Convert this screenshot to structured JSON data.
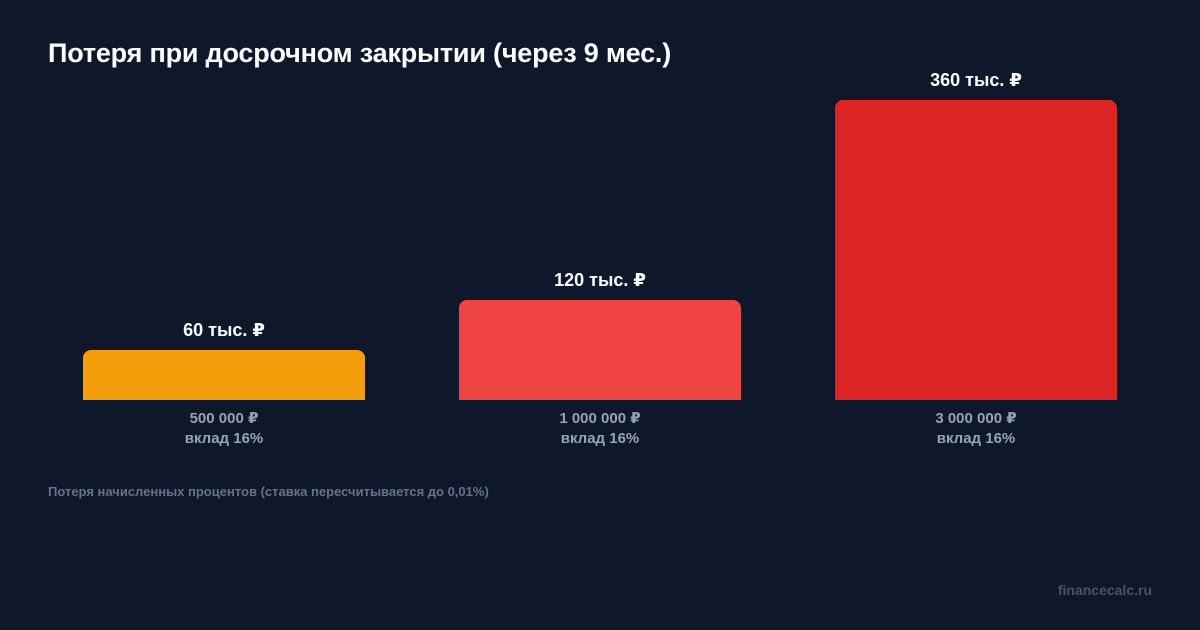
{
  "title": "Потеря при досрочном закрытии (через 9 мес.)",
  "note": "Потеря начисленных процентов (ставка пересчитывается до 0,01%)",
  "watermark": "financecalc.ru",
  "bars": [
    {
      "value_label": "60 тыс. ₽",
      "amount": "500 000 ₽",
      "rate": "вклад 16%",
      "color": "#f59e0b"
    },
    {
      "value_label": "120 тыс. ₽",
      "amount": "1 000 000 ₽",
      "rate": "вклад 16%",
      "color": "#ef4444"
    },
    {
      "value_label": "360 тыс. ₽",
      "amount": "3 000 000 ₽",
      "rate": "вклад 16%",
      "color": "#dc2626"
    }
  ],
  "chart_data": {
    "type": "bar",
    "title": "Потеря при досрочном закрытии (через 9 мес.)",
    "categories": [
      "500 000 ₽ вклад 16%",
      "1 000 000 ₽ вклад 16%",
      "3 000 000 ₽ вклад 16%"
    ],
    "values": [
      60,
      120,
      360
    ],
    "value_labels": [
      "60 тыс. ₽",
      "120 тыс. ₽",
      "360 тыс. ₽"
    ],
    "unit": "тыс. ₽",
    "colors": [
      "#f59e0b",
      "#ef4444",
      "#dc2626"
    ],
    "xlabel": "",
    "ylabel": "",
    "grid": false,
    "legend": "none",
    "annotation": "Потеря начисленных процентов (ставка пересчитывается до 0,01%)"
  }
}
